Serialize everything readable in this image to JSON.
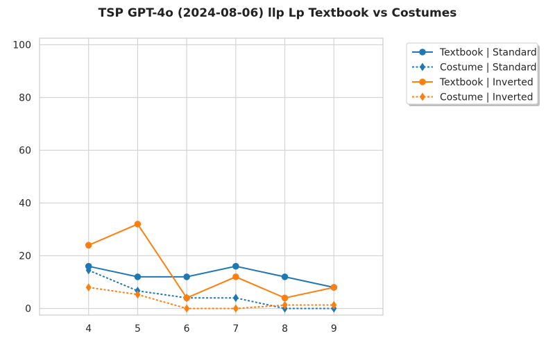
{
  "chart_data": {
    "type": "line",
    "title": "TSP GPT-4o (2024-08-06) llp Lp Textbook vs Costumes",
    "xlabel": "",
    "ylabel": "",
    "x": [
      4,
      5,
      6,
      7,
      8,
      9
    ],
    "x_ticks": [
      "4",
      "5",
      "6",
      "7",
      "8",
      "9"
    ],
    "y_ticks": [
      "0",
      "20",
      "40",
      "60",
      "80",
      "100"
    ],
    "xlim": [
      3,
      10
    ],
    "ylim": [
      -2.5,
      102.5
    ],
    "grid": true,
    "legend_position": "outside-top-right",
    "series": [
      {
        "name": "Textbook | Standard",
        "values": [
          16,
          12,
          12,
          16,
          12,
          8
        ],
        "color": "#1f77b4",
        "style": "solid",
        "marker": "circle"
      },
      {
        "name": "Costume | Standard",
        "values": [
          14.5,
          6.7,
          4,
          4,
          0,
          0
        ],
        "color": "#1f77b4",
        "style": "dashed",
        "marker": "diamond"
      },
      {
        "name": "Textbook | Inverted",
        "values": [
          24,
          32,
          4,
          12,
          4,
          8
        ],
        "color": "#ff7f0e",
        "style": "solid",
        "marker": "circle"
      },
      {
        "name": "Costume | Inverted",
        "values": [
          8,
          5.3,
          0,
          0,
          1.3,
          1.3
        ],
        "color": "#ff7f0e",
        "style": "dashed",
        "marker": "diamond"
      }
    ]
  }
}
